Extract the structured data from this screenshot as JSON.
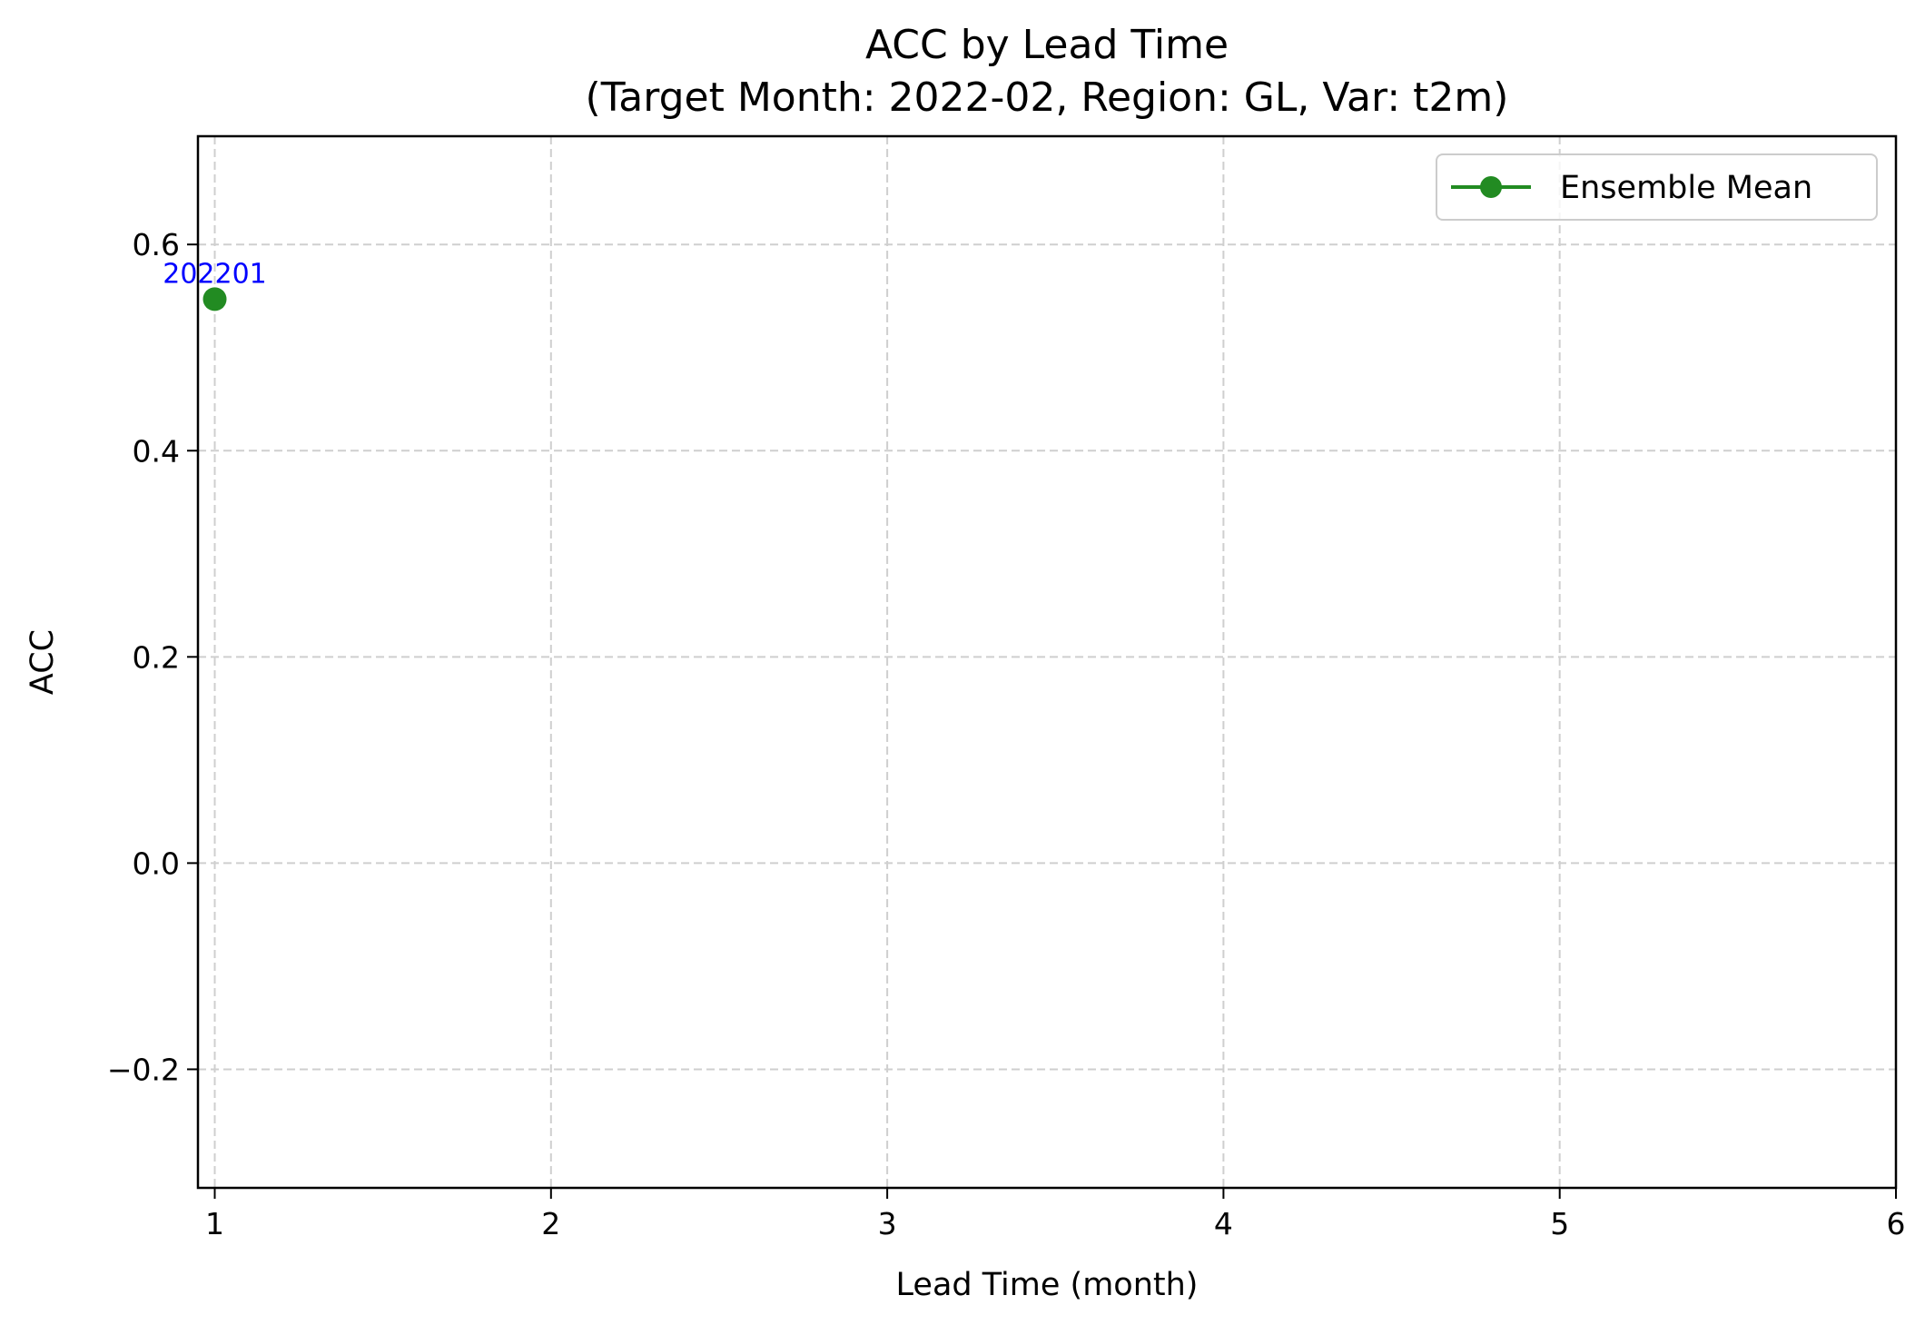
{
  "chart_data": {
    "type": "line",
    "title": "ACC by Lead Time",
    "subtitle": "(Target Month: 2022-02, Region: GL, Var: t2m)",
    "xlabel": "Lead Time (month)",
    "ylabel": "ACC",
    "xlim": [
      0.95,
      6
    ],
    "ylim": [
      -0.315,
      0.705
    ],
    "x_ticks": [
      1,
      2,
      3,
      4,
      5,
      6
    ],
    "x_tick_labels": [
      "1",
      "2",
      "3",
      "4",
      "5",
      "6"
    ],
    "y_ticks": [
      -0.2,
      0.0,
      0.2,
      0.4,
      0.6
    ],
    "y_tick_labels": [
      "−0.2",
      "0.0",
      "0.2",
      "0.4",
      "0.6"
    ],
    "grid": true,
    "legend_position": "top-right",
    "series": [
      {
        "name": "Ensemble Mean",
        "color": "#228b22",
        "marker": "circle",
        "points": [
          {
            "x": 1,
            "y": 0.547,
            "label": "202201"
          }
        ]
      }
    ],
    "annotation_color": "#0000ff"
  }
}
